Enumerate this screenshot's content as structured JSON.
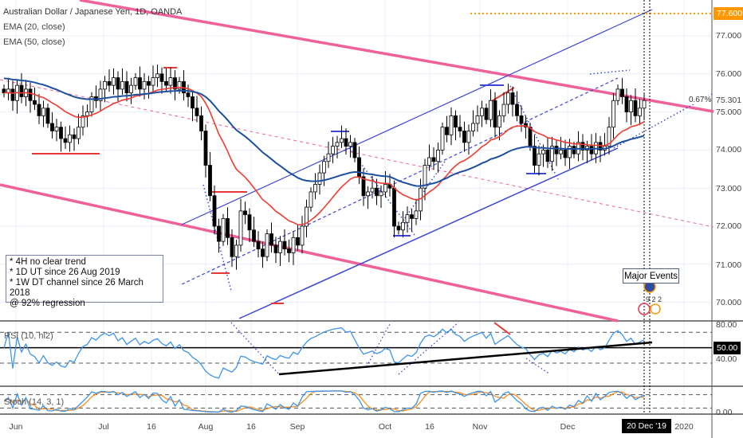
{
  "header": {
    "title": "Australian Dollar / Japanese Yen, 1D, OANDA",
    "ema20": "EMA (20, close)",
    "ema50": "EMA (50, close)"
  },
  "notes": {
    "line1": "* 4H no clear trend",
    "line2": "* 1D UT since 26 Aug 2019",
    "line3": "* 1W DT channel since 26 March 2018",
    "line4": "@ 92% regression"
  },
  "annotations": {
    "major_events": "Major Events",
    "event_counts": "9 2 2",
    "percent": "0.67%"
  },
  "panels": {
    "rsi_label": "RSI (10, hl2)",
    "stoch_label": "Stoch (14, 3, 1)"
  },
  "axis": {
    "price_ticks": [
      "77.000",
      "76.000",
      "75.000",
      "74.000",
      "73.000",
      "72.000",
      "71.000",
      "70.000"
    ],
    "price_tick_values": [
      77,
      76,
      75,
      74,
      73,
      72,
      71,
      70
    ],
    "target_label": "77.600",
    "last_price_label": "75.301",
    "rsi_ticks": [
      "80.00",
      "40.00"
    ],
    "rsi_level_label": "50.00",
    "stoch_ticks": [
      "0.00"
    ],
    "time_labels": [
      "Jun",
      "Jul",
      "16",
      "Aug",
      "16",
      "Sep",
      "Oct",
      "16",
      "Nov",
      "Dec",
      "2020"
    ],
    "cursor_date": "20 Dec '19"
  },
  "colors": {
    "ema20": "#f23b30",
    "ema50": "#1c4fa0",
    "channel_pink": "#f0619a",
    "channel_blue": "#3d45d6",
    "target": "#ff9800",
    "rsi": "#3d94e8",
    "stoch_k": "#3d94e8",
    "stoch_d": "#ff8c1a"
  },
  "chart_data": {
    "type": "candlestick",
    "title": "Australian Dollar / Japanese Yen, 1D, OANDA",
    "ylim": [
      69.5,
      77.9
    ],
    "target": 77.6,
    "last": 75.301,
    "closes": [
      75.5,
      75.6,
      75.3,
      75.7,
      75.4,
      75.6,
      75.3,
      75.2,
      74.9,
      75.1,
      74.7,
      74.5,
      74.6,
      74.3,
      74.2,
      74.4,
      74.3,
      74.6,
      74.9,
      75.0,
      75.4,
      75.3,
      75.6,
      75.8,
      75.7,
      75.9,
      75.6,
      75.8,
      75.5,
      75.7,
      75.9,
      75.6,
      75.8,
      75.7,
      75.9,
      76.0,
      75.8,
      75.7,
      75.9,
      75.6,
      75.8,
      75.5,
      75.4,
      75.1,
      74.9,
      74.5,
      73.6,
      72.8,
      72.0,
      71.6,
      72.2,
      71.7,
      71.2,
      71.5,
      72.4,
      72.3,
      71.9,
      71.6,
      71.4,
      71.2,
      71.8,
      71.5,
      71.3,
      71.6,
      71.4,
      71.3,
      71.7,
      71.5,
      72.0,
      72.5,
      72.9,
      73.1,
      73.4,
      73.7,
      73.9,
      74.1,
      74.2,
      74.3,
      74.1,
      74.2,
      73.8,
      73.3,
      72.8,
      72.9,
      73.0,
      72.8,
      72.9,
      73.1,
      73.0,
      72.0,
      71.9,
      72.1,
      72.3,
      72.2,
      72.4,
      73.0,
      73.6,
      73.8,
      73.7,
      74.0,
      74.6,
      74.4,
      74.9,
      74.6,
      74.5,
      74.2,
      74.5,
      74.7,
      74.9,
      75.1,
      74.8,
      75.3,
      74.6,
      74.9,
      75.2,
      75.5,
      75.2,
      74.9,
      74.7,
      74.6,
      74.1,
      73.6,
      73.9,
      74.0,
      73.7,
      74.1,
      73.9,
      74.0,
      73.8,
      74.1,
      73.9,
      74.2,
      74.0,
      74.1,
      73.9,
      74.2,
      74.0,
      74.1,
      74.6,
      75.3,
      75.6,
      75.4,
      75.0,
      75.3,
      74.9,
      75.1,
      75.301
    ],
    "indicators": [
      "EMA 20",
      "EMA 50",
      "RSI 10",
      "Stoch 14,3,1"
    ]
  }
}
